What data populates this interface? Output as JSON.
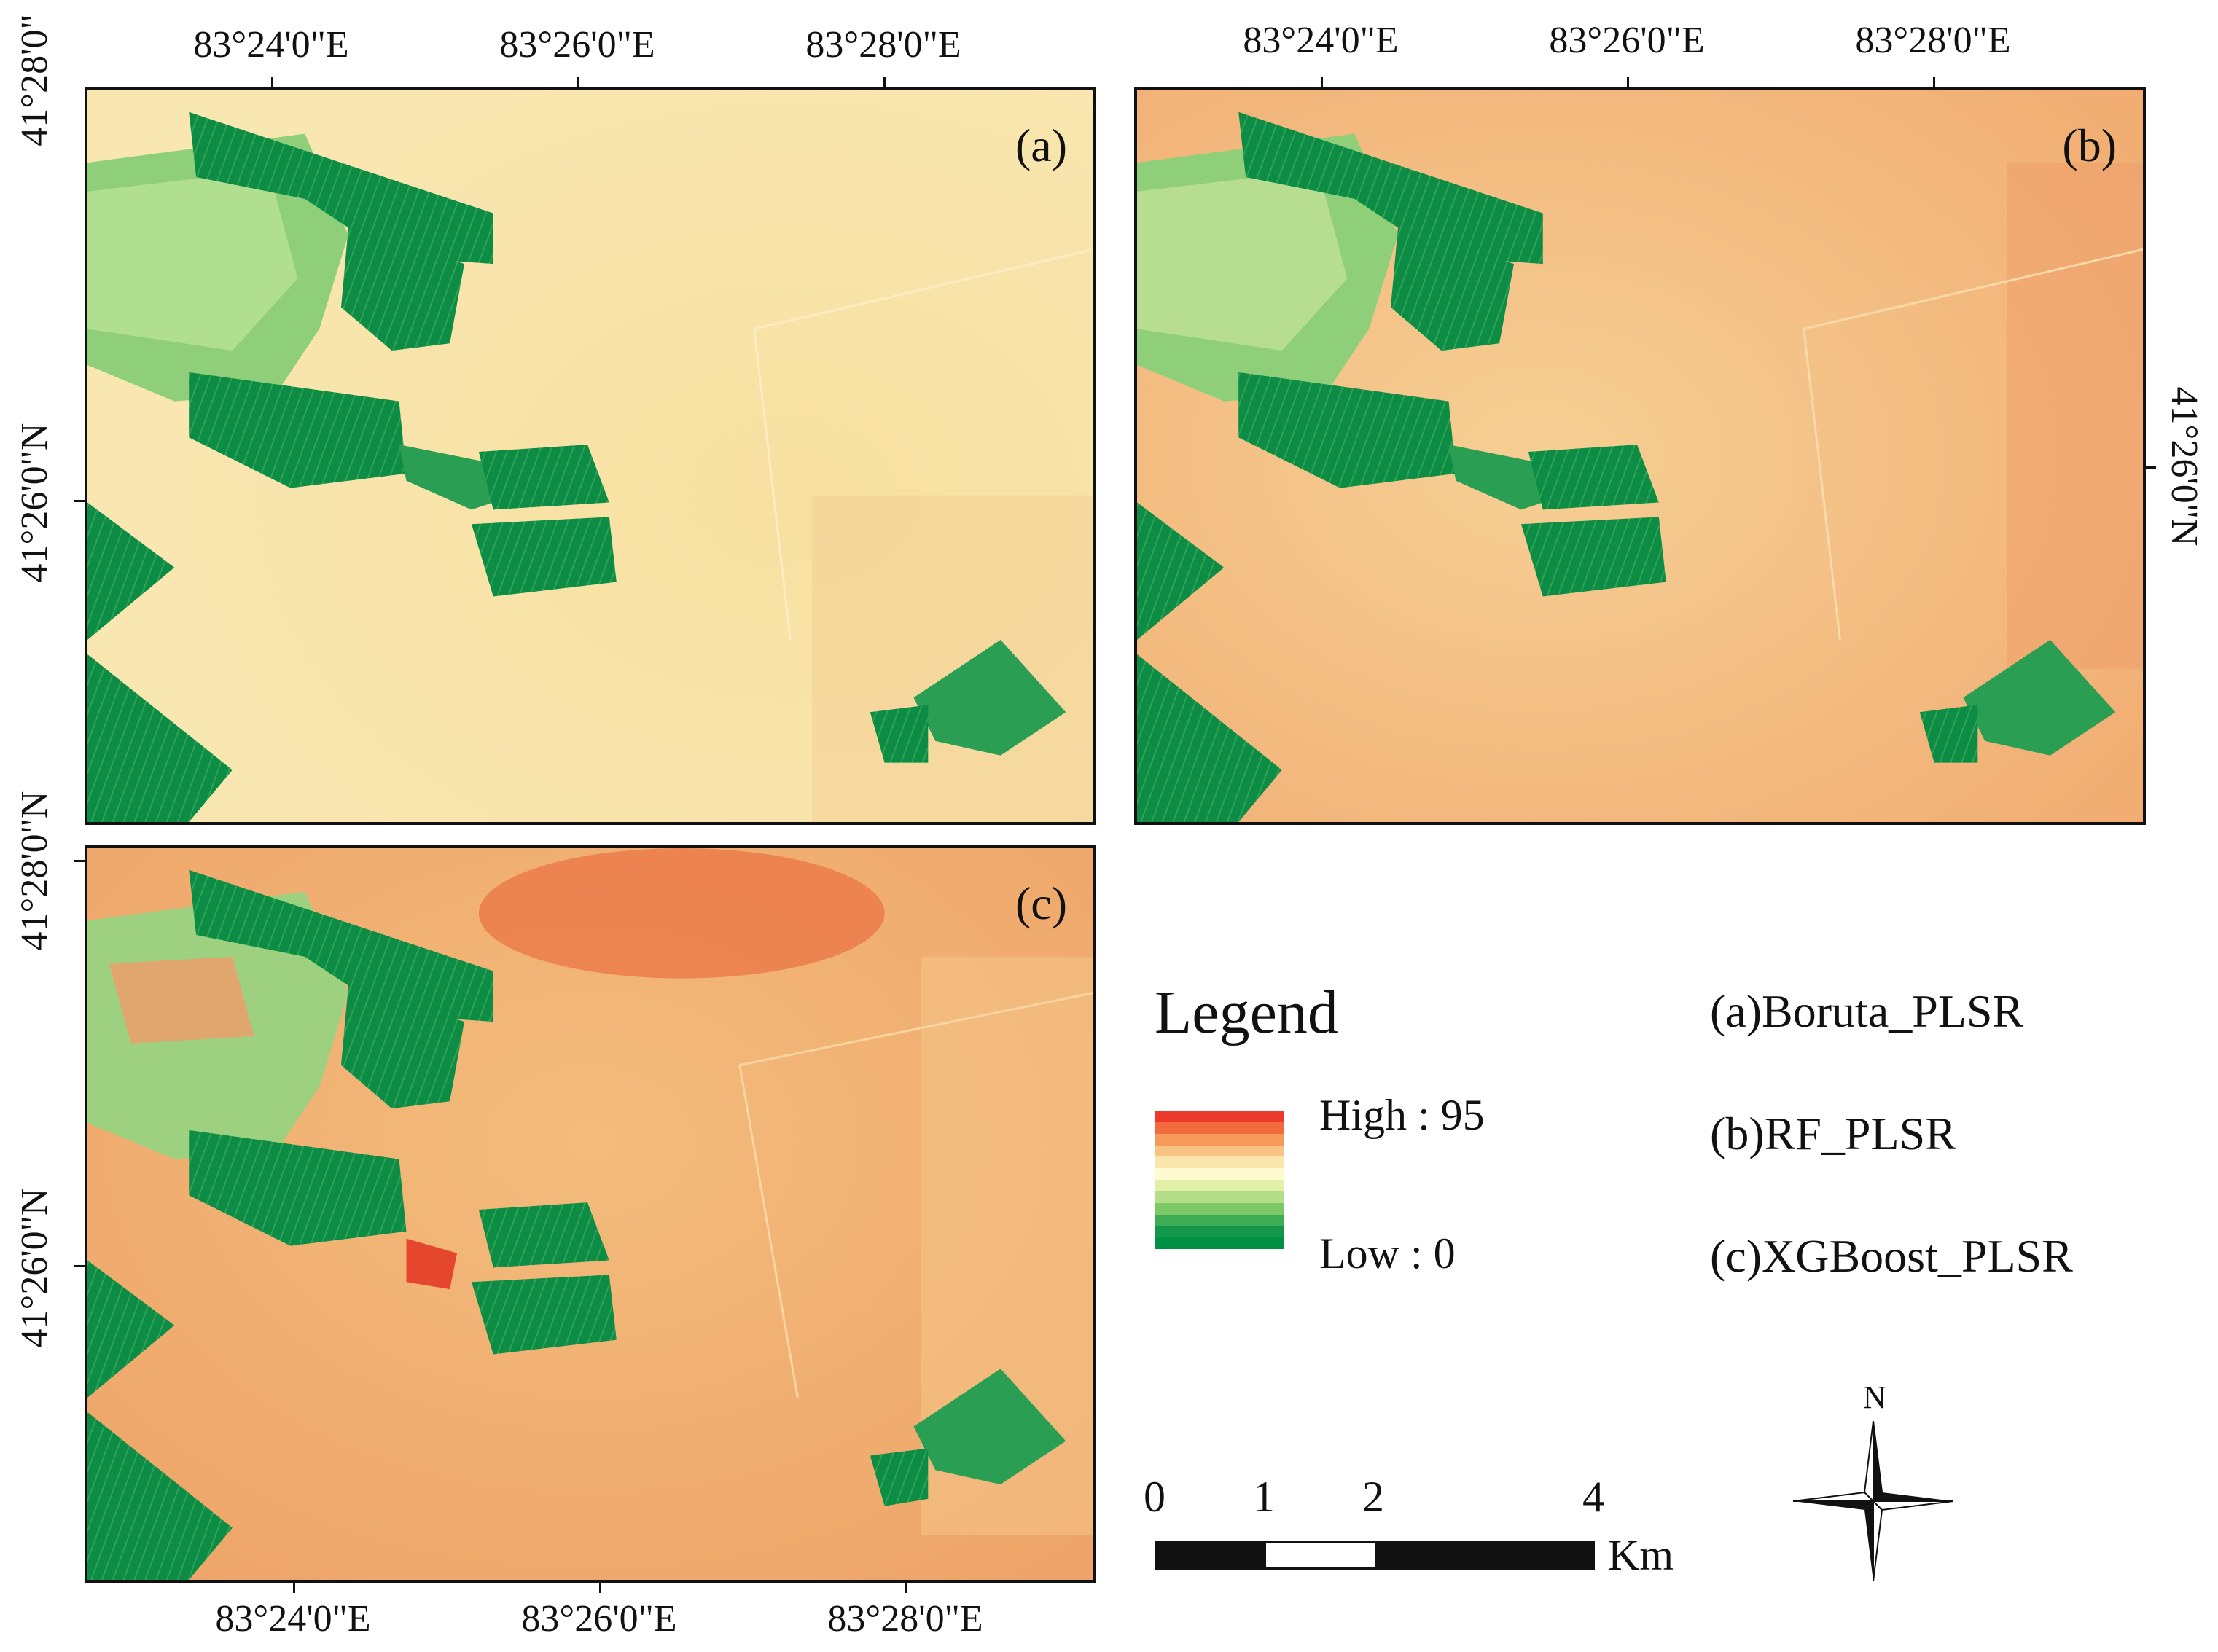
{
  "panels": [
    {
      "id": "a",
      "label": "(a)",
      "background": "#f7e3a6",
      "tone": "light"
    },
    {
      "id": "b",
      "label": "(b)",
      "background": "#f4c98b",
      "tone": "medium"
    },
    {
      "id": "c",
      "label": "(c)",
      "background": "#f1b677",
      "tone": "dark"
    }
  ],
  "axes": {
    "lon_labels": [
      "83°24'0\"E",
      "83°26'0\"E",
      "83°28'0\"E"
    ],
    "lat_labels": [
      "41°28'0\"N",
      "41°26'0\"N"
    ],
    "lat_top_partial": "41°28'0\""
  },
  "legend": {
    "title": "Legend",
    "high_label": "High : 95",
    "low_label": "Low : 0",
    "colors": [
      "#ee3a2c",
      "#f26b3c",
      "#f59a58",
      "#f8c383",
      "#fbe7ae",
      "#fffbd0",
      "#e2f1a7",
      "#b4de87",
      "#7cc866",
      "#3cad55",
      "#139749",
      "#009144"
    ]
  },
  "models": {
    "a": "(a)Boruta_PLSR",
    "b": "(b)RF_PLSR",
    "c": "(c)XGBoost_PLSR"
  },
  "scale_bar": {
    "ticks": [
      "0",
      "1",
      "2",
      "4"
    ],
    "unit": "Km"
  },
  "north_arrow": {
    "label": "N"
  },
  "colors": {
    "vegetation": "#0c8c44",
    "vegetation_light": "#63b95a",
    "high": "#e9492f"
  }
}
